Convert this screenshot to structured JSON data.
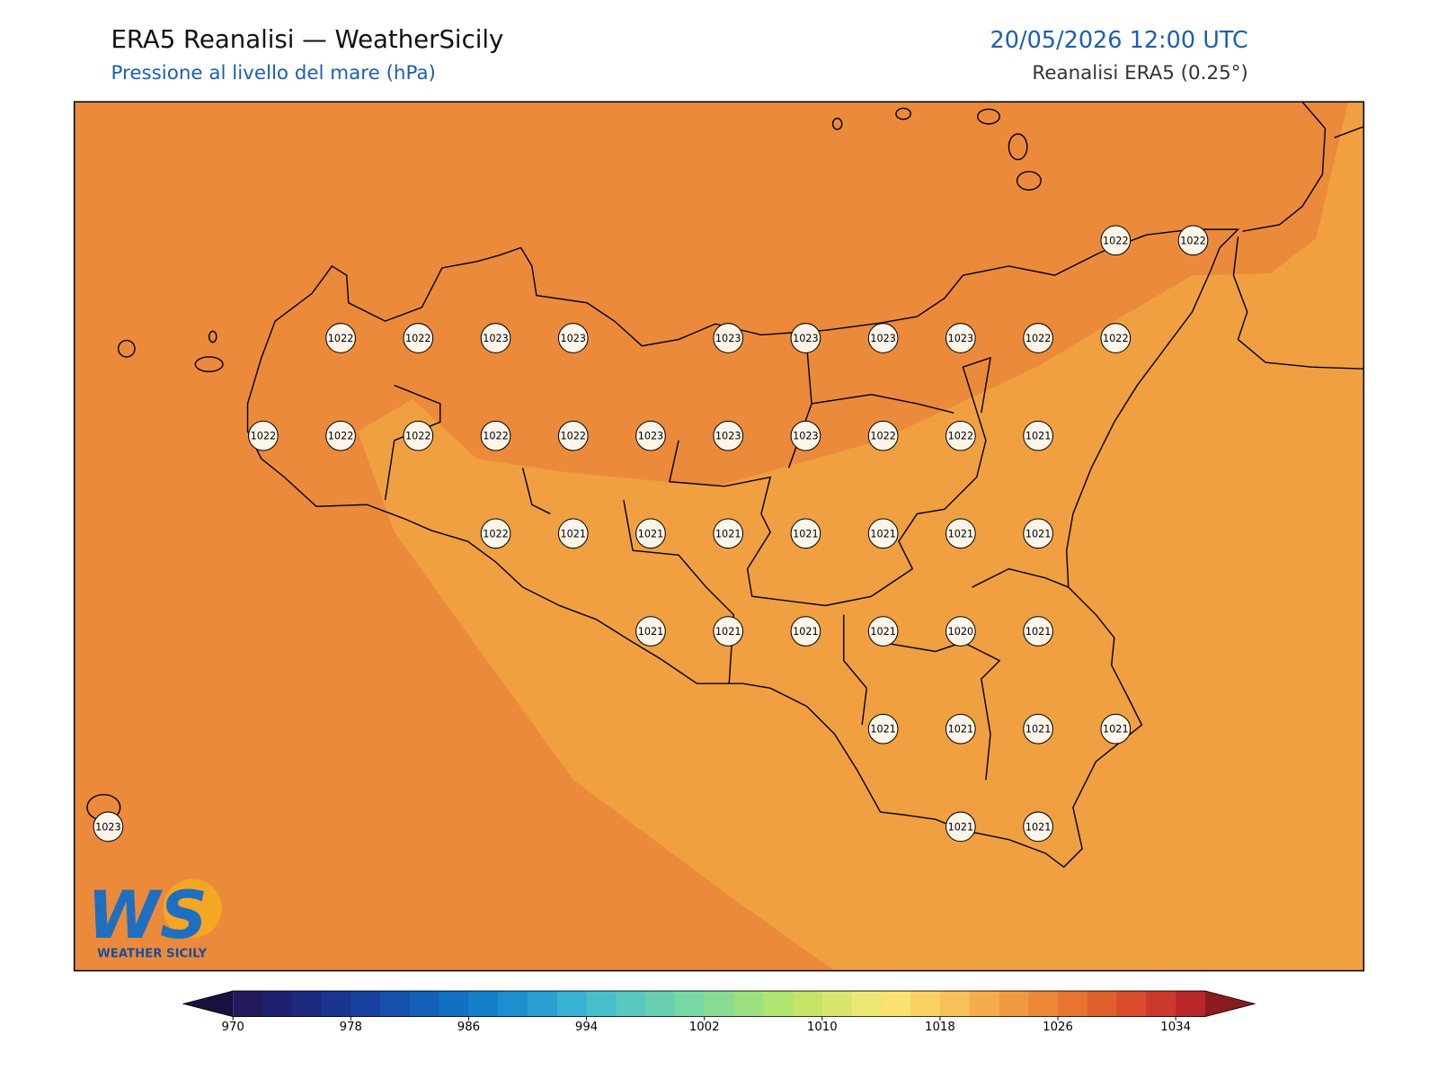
{
  "header": {
    "title": "ERA5 Reanalisi — WeatherSicily",
    "subtitle": "Pressione al livello del mare (hPa)",
    "datetime": "20/05/2026 12:00 UTC",
    "source": "Reanalisi ERA5 (0.25°)"
  },
  "stations": [
    1022,
    1022,
    1022,
    1022,
    1023,
    1023,
    1023,
    1023,
    1023,
    1023,
    1022,
    1022,
    1022,
    1022,
    1022,
    1022,
    1022,
    1023,
    1023,
    1023,
    1022,
    1022,
    1021,
    1022,
    1021,
    1021,
    1021,
    1021,
    1021,
    1021,
    1021,
    1021,
    1021,
    1021,
    1021,
    1020,
    1021,
    1021,
    1021,
    1021,
    1021,
    1023,
    1021,
    1021
  ],
  "colorbar": {
    "ticks": [
      970,
      978,
      986,
      994,
      1002,
      1010,
      1018,
      1026,
      1034
    ],
    "under": "#1a1040",
    "over": "#8a1c20",
    "colors": [
      "#231a5c",
      "#1f2070",
      "#1c2a80",
      "#1a3590",
      "#17409e",
      "#1550ac",
      "#1360b8",
      "#1170c4",
      "#1480ca",
      "#1c90cf",
      "#2aa0d2",
      "#38b2d2",
      "#48c0cc",
      "#58c8c0",
      "#68d0b0",
      "#78d8a4",
      "#88dc94",
      "#9ce080",
      "#b0e470",
      "#c4e468",
      "#d8e670",
      "#ece874",
      "#fce270",
      "#fad264",
      "#f8c058",
      "#f4ac4c",
      "#f09a40",
      "#ec8838",
      "#e87430",
      "#e0602c",
      "#d84c2c",
      "#cc382c",
      "#b82828"
    ]
  },
  "logo": {
    "letters": "WS",
    "name": "WEATHER SICILY"
  }
}
